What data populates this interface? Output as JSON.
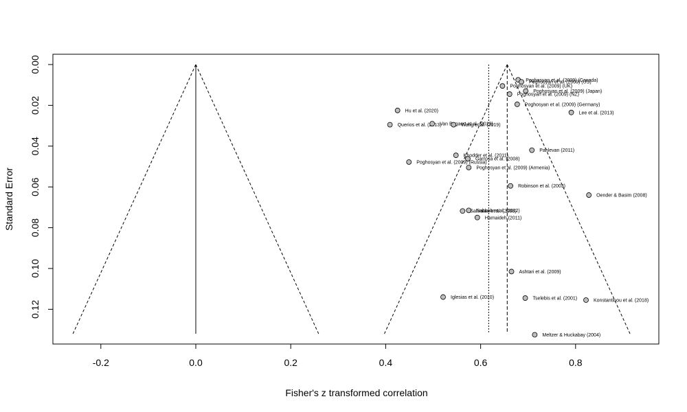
{
  "chart_data": {
    "type": "scatter",
    "subtype": "funnel-plot",
    "title": "",
    "xlabel": "Fisher's z transformed correlation",
    "ylabel": "Standard Error",
    "xlim": [
      -0.26,
      0.93
    ],
    "ylim": [
      0,
      0.132
    ],
    "y_reversed": true,
    "grid": false,
    "legend": "none",
    "x_ticks": [
      -0.2,
      0.0,
      0.2,
      0.4,
      0.6,
      0.8
    ],
    "x_tick_labels": [
      "-0.2",
      "0.0",
      "0.2",
      "0.4",
      "0.6",
      "0.8"
    ],
    "y_ticks": [
      0,
      0.02,
      0.04,
      0.06,
      0.08,
      0.1,
      0.12
    ],
    "y_tick_labels": [
      "0.00",
      "0.02",
      "0.04",
      "0.06",
      "0.08",
      "0.10",
      "0.12"
    ],
    "null_funnel": {
      "center": 0.0,
      "max_se": 0.132
    },
    "effect_funnel": {
      "center": 0.656,
      "max_se": 0.132
    },
    "summary_lines": [
      0.617,
      0.656
    ],
    "point_color": "#bdbdbd",
    "points": [
      {
        "label": "Poghosyan et al. (2009) (Canada)",
        "x": 0.679,
        "y": 0.0075
      },
      {
        "label": "Poghosyan et al. (2009) (US)",
        "x": 0.686,
        "y": 0.0085
      },
      {
        "label": "Poghosyan et al. (2009) (UK)",
        "x": 0.646,
        "y": 0.0105
      },
      {
        "label": "Poghosyan et al. (2009) (Japan)",
        "x": 0.695,
        "y": 0.013
      },
      {
        "label": "Poghosyan et al. (2009) (NZ)",
        "x": 0.661,
        "y": 0.0145
      },
      {
        "label": "Poghosyan et al. (2009) (Germany)",
        "x": 0.677,
        "y": 0.0195
      },
      {
        "label": "Lee et al. (2013)",
        "x": 0.791,
        "y": 0.0235
      },
      {
        "label": "Hu et al. (2020)",
        "x": 0.425,
        "y": 0.0225
      },
      {
        "label": "Querios et al. (2013)",
        "x": 0.409,
        "y": 0.0295
      },
      {
        "label": "Van Bogaert et al. (2013)",
        "x": 0.498,
        "y": 0.029
      },
      {
        "label": "Wang et al. (2019)",
        "x": 0.543,
        "y": 0.0295
      },
      {
        "label": "Pahlevan (2011)",
        "x": 0.708,
        "y": 0.042
      },
      {
        "label": "Khodder et al. (2011)",
        "x": 0.548,
        "y": 0.0445
      },
      {
        "label": "Garrosa et al. (2008)",
        "x": 0.573,
        "y": 0.0462
      },
      {
        "label": "Poghosyan et al. (2009) (Russia)",
        "x": 0.449,
        "y": 0.0478
      },
      {
        "label": "Poghosyan et al. (2009) (Armenia)",
        "x": 0.575,
        "y": 0.0505
      },
      {
        "label": "Robinson et al. (2003)",
        "x": 0.663,
        "y": 0.0595
      },
      {
        "label": "Oender & Basim (2008)",
        "x": 0.828,
        "y": 0.064
      },
      {
        "label": "Sabbah et al. (2012)",
        "x": 0.575,
        "y": 0.0715
      },
      {
        "label": "Sahraian et al. (2008)",
        "x": 0.562,
        "y": 0.0718
      },
      {
        "label": "Hamaideh (2011)",
        "x": 0.593,
        "y": 0.075
      },
      {
        "label": "Ashtari et al. (2009)",
        "x": 0.665,
        "y": 0.1015
      },
      {
        "label": "Iglesias et al. (2010)",
        "x": 0.521,
        "y": 0.114
      },
      {
        "label": "Tselebis et al. (2001)",
        "x": 0.694,
        "y": 0.1145
      },
      {
        "label": "Konstantinou et al. (2018)",
        "x": 0.822,
        "y": 0.1155
      },
      {
        "label": "Meltzer & Huckabay (2004)",
        "x": 0.714,
        "y": 0.1325
      }
    ]
  }
}
